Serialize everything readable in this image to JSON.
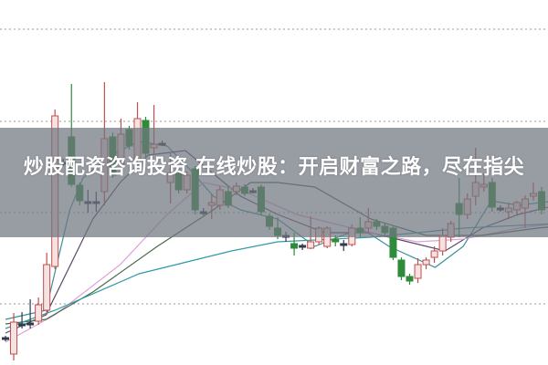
{
  "caption": {
    "title": "炒股配资咨询投资 在线炒股：开启财富之路，尽在指尖"
  },
  "colors": {
    "up": "#c0504d",
    "up_fill": "#f6e2e2",
    "down": "#2e8b3a",
    "doji": "#2f3a4a",
    "grid": "#9a9a9a",
    "banner": "#707680"
  },
  "chart_data": {
    "type": "candlestick",
    "title": "",
    "xlabel": "",
    "ylabel": "",
    "ylim": [
      0,
      400
    ],
    "grid": "horizontal dotted",
    "gridlines": [
      67,
      167,
      267,
      368
    ],
    "candles": [
      [
        28,
        32,
        26,
        30
      ],
      [
        12,
        57,
        5,
        47
      ],
      [
        45,
        58,
        40,
        43
      ],
      [
        44,
        72,
        40,
        46
      ],
      [
        48,
        74,
        44,
        66
      ],
      [
        60,
        123,
        55,
        110
      ],
      [
        108,
        280,
        105,
        273
      ],
      [
        222,
        226,
        218,
        221
      ],
      [
        250,
        308,
        195,
        198
      ],
      [
        197,
        200,
        175,
        180
      ],
      [
        178,
        192,
        167,
        179
      ],
      [
        178,
        190,
        168,
        179
      ],
      [
        190,
        310,
        175,
        248
      ],
      [
        250,
        255,
        205,
        208
      ],
      [
        220,
        270,
        210,
        253
      ],
      [
        258,
        262,
        236,
        240
      ],
      [
        225,
        288,
        220,
        270
      ],
      [
        268,
        272,
        228,
        232
      ],
      [
        238,
        285,
        230,
        242
      ],
      [
        243,
        246,
        240,
        243
      ],
      [
        200,
        232,
        177,
        210
      ],
      [
        210,
        214,
        188,
        192
      ],
      [
        192,
        212,
        188,
        208
      ],
      [
        215,
        218,
        165,
        170
      ],
      [
        168,
        172,
        164,
        168
      ],
      [
        175,
        188,
        160,
        178
      ],
      [
        175,
        196,
        170,
        192
      ],
      [
        190,
        195,
        172,
        175
      ],
      [
        190,
        200,
        186,
        196
      ],
      [
        195,
        198,
        185,
        188
      ],
      [
        191,
        194,
        188,
        191
      ],
      [
        195,
        198,
        165,
        168
      ],
      [
        163,
        166,
        148,
        152
      ],
      [
        150,
        162,
        138,
        142
      ],
      [
        140,
        146,
        135,
        142
      ],
      [
        133,
        145,
        120,
        128
      ],
      [
        131,
        133,
        126,
        129
      ],
      [
        128,
        163,
        127,
        135
      ],
      [
        135,
        152,
        132,
        150
      ],
      [
        130,
        152,
        128,
        150
      ],
      [
        138,
        142,
        130,
        135
      ],
      [
        133,
        137,
        125,
        132
      ],
      [
        132,
        154,
        130,
        150
      ],
      [
        150,
        162,
        140,
        145
      ],
      [
        150,
        172,
        144,
        157
      ],
      [
        157,
        160,
        148,
        152
      ],
      [
        152,
        155,
        142,
        145
      ],
      [
        150,
        152,
        115,
        118
      ],
      [
        115,
        118,
        93,
        97
      ],
      [
        97,
        100,
        88,
        92
      ],
      [
        95,
        117,
        90,
        110
      ],
      [
        110,
        118,
        105,
        115
      ],
      [
        118,
        130,
        112,
        125
      ],
      [
        125,
        150,
        120,
        142
      ],
      [
        140,
        158,
        135,
        155
      ],
      [
        177,
        205,
        140,
        165
      ],
      [
        165,
        188,
        160,
        182
      ],
      [
        185,
        238,
        175,
        200
      ],
      [
        195,
        210,
        190,
        198
      ],
      [
        200,
        205,
        168,
        173
      ],
      [
        172,
        175,
        168,
        170
      ],
      [
        168,
        178,
        160,
        172
      ],
      [
        170,
        180,
        165,
        178
      ],
      [
        172,
        186,
        150,
        182
      ],
      [
        185,
        200,
        180,
        188
      ],
      [
        190,
        195,
        165,
        170
      ]
    ],
    "moving_averages": [
      {
        "color": "#3a8f9a",
        "points": [
          [
            0,
            50
          ],
          [
            4.9,
            60
          ],
          [
            7.8,
            170
          ],
          [
            9.4,
            205
          ],
          [
            12.8,
            230
          ],
          [
            16.2,
            245
          ],
          [
            19.6,
            240
          ],
          [
            21.8,
            220
          ],
          [
            25.2,
            185
          ],
          [
            28.5,
            170
          ],
          [
            33,
            160
          ],
          [
            37.5,
            130
          ],
          [
            43.1,
            150
          ],
          [
            46.5,
            130
          ],
          [
            52.1,
            107
          ],
          [
            55.5,
            130
          ],
          [
            58.9,
            180
          ],
          [
            62.2,
            175
          ],
          [
            66.7,
            180
          ]
        ]
      },
      {
        "color": "#5a4a6a",
        "points": [
          [
            0,
            35
          ],
          [
            4.9,
            55
          ],
          [
            10.6,
            160
          ],
          [
            13.9,
            200
          ],
          [
            17.3,
            230
          ],
          [
            21.8,
            235
          ],
          [
            28.5,
            185
          ],
          [
            33,
            165
          ],
          [
            38.7,
            145
          ],
          [
            44.3,
            145
          ],
          [
            48.8,
            135
          ],
          [
            53.3,
            125
          ],
          [
            57.8,
            150
          ],
          [
            62.2,
            165
          ],
          [
            66.7,
            175
          ]
        ]
      },
      {
        "color": "#e0a0d8",
        "points": [
          [
            0,
            25
          ],
          [
            6,
            55
          ],
          [
            13.9,
            110
          ],
          [
            19.6,
            165
          ],
          [
            24,
            200
          ],
          [
            28.5,
            192
          ],
          [
            35.3,
            165
          ],
          [
            44.3,
            145
          ],
          [
            49.9,
            135
          ],
          [
            55.5,
            138
          ],
          [
            62.2,
            150
          ],
          [
            66.7,
            155
          ]
        ]
      },
      {
        "color": "#4a6a4a",
        "points": [
          [
            0,
            45
          ],
          [
            4.9,
            50
          ],
          [
            10.6,
            80
          ],
          [
            18.4,
            130
          ],
          [
            25.2,
            170
          ],
          [
            29.7,
            200
          ],
          [
            33,
            200
          ],
          [
            37.5,
            195
          ],
          [
            44.3,
            160
          ],
          [
            51,
            142
          ],
          [
            57.8,
            142
          ],
          [
            64.5,
            150
          ],
          [
            66.7,
            152
          ]
        ]
      },
      {
        "color": "#2f9aa6",
        "points": [
          [
            0,
            40
          ],
          [
            6,
            60
          ],
          [
            16.2,
            100
          ],
          [
            27.4,
            125
          ],
          [
            33,
            135
          ],
          [
            44.3,
            140
          ],
          [
            55.5,
            150
          ],
          [
            66.7,
            155
          ]
        ]
      }
    ]
  }
}
